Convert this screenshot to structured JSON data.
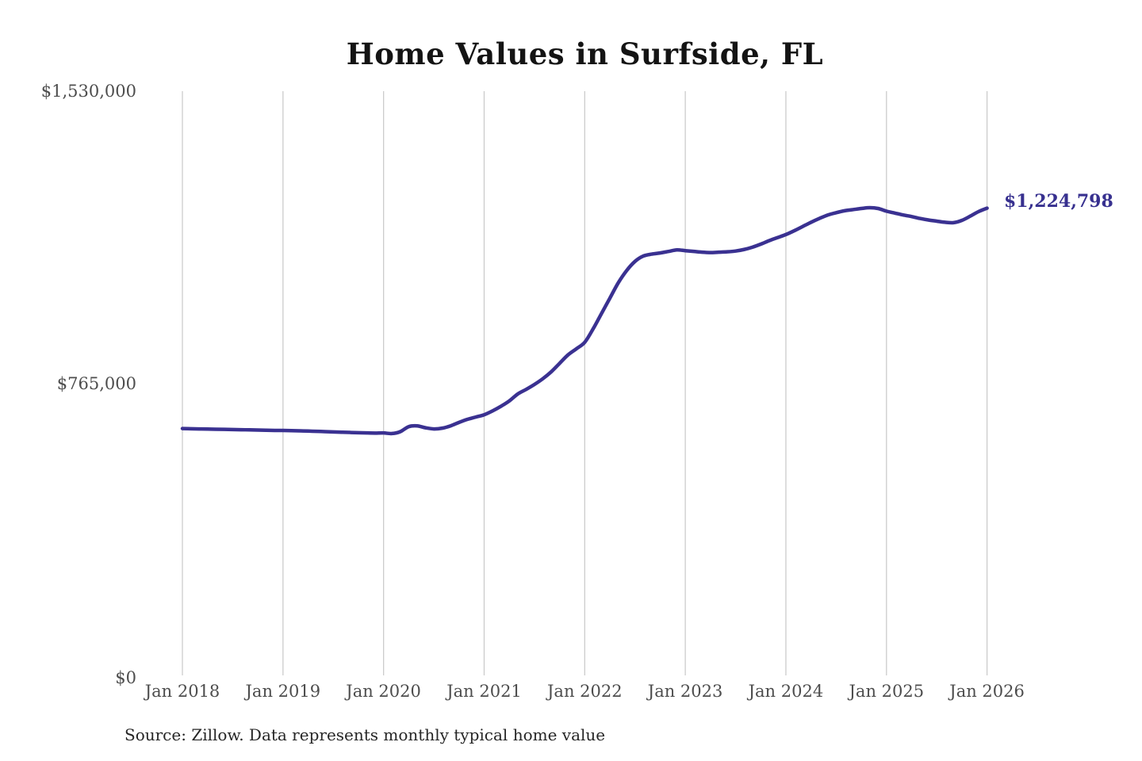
{
  "page": {
    "title": "Home Values in Surfside, FL",
    "source_note": "Source: Zillow. Data represents monthly typical home value"
  },
  "chart_data": {
    "type": "line",
    "title": "Home Values in Surfside, FL",
    "xlabel": "",
    "ylabel": "",
    "ylim": [
      0,
      1530000
    ],
    "y_ticks": [
      1530000,
      765000,
      0
    ],
    "y_tick_labels": [
      "$1,530,000",
      "$765,000",
      "$0"
    ],
    "x_tick_labels": [
      "Jan 2018",
      "Jan 2019",
      "Jan 2020",
      "Jan 2021",
      "Jan 2022",
      "Jan 2023",
      "Jan 2024",
      "Jan 2025",
      "Jan 2026"
    ],
    "x_frequency": "monthly",
    "x_range": [
      "Jan 2018",
      "Jan 2026"
    ],
    "grid": "vertical-only",
    "legend": "none",
    "end_label": "$1,224,798",
    "final_value": 1224798,
    "line_color": "#3a3191",
    "grid_color": "#cccccc",
    "series": [
      {
        "name": "Typical home value",
        "values": [
          650000,
          649500,
          649000,
          648600,
          648200,
          647800,
          647400,
          647000,
          646500,
          646000,
          645500,
          645200,
          645000,
          644500,
          644000,
          643400,
          642800,
          642000,
          641200,
          640400,
          639800,
          639200,
          638600,
          638200,
          638500,
          637000,
          642000,
          655000,
          657000,
          652000,
          649000,
          651000,
          657000,
          666000,
          674000,
          680000,
          686000,
          696000,
          708000,
          722000,
          740000,
          752000,
          765000,
          780000,
          798000,
          820000,
          842000,
          858000,
          875000,
          910000,
          950000,
          990000,
          1030000,
          1062000,
          1086000,
          1100000,
          1105000,
          1108000,
          1112000,
          1116000,
          1114000,
          1112000,
          1110000,
          1109000,
          1110000,
          1111000,
          1113000,
          1117000,
          1123000,
          1131000,
          1140000,
          1148000,
          1156000,
          1166000,
          1177000,
          1188000,
          1198000,
          1207000,
          1213000,
          1218000,
          1221000,
          1224000,
          1226000,
          1224000,
          1217000,
          1212000,
          1207000,
          1203000,
          1198000,
          1194000,
          1191000,
          1188000,
          1187000,
          1193000,
          1204000,
          1216000,
          1224798
        ]
      }
    ],
    "source_note": "Source: Zillow. Data represents monthly typical home value"
  }
}
